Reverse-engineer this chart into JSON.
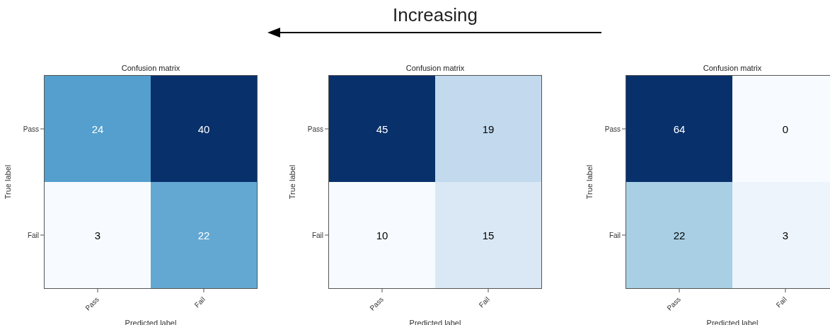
{
  "chart_data": [
    {
      "type": "other",
      "annotations": [
        "Increasing"
      ]
    },
    {
      "type": "heatmap",
      "title": "Confusion matrix",
      "xlabel": "Predicted label",
      "ylabel": "True label",
      "categories": [
        "Pass",
        "Fail"
      ],
      "y_categories": [
        "Pass",
        "Fail"
      ],
      "cells": [
        [
          24,
          40
        ],
        [
          3,
          22
        ]
      ],
      "data_labels": true,
      "colors": [
        [
          "#549fcd",
          "#08306b"
        ],
        [
          "#f7fbff",
          "#63a8d3"
        ]
      ]
    },
    {
      "type": "heatmap",
      "title": "Confusion matrix",
      "xlabel": "Predicted label",
      "ylabel": "True label",
      "categories": [
        "Pass",
        "Fail"
      ],
      "y_categories": [
        "Pass",
        "Fail"
      ],
      "cells": [
        [
          45,
          19
        ],
        [
          10,
          15
        ]
      ],
      "data_labels": true,
      "colors": [
        [
          "#08306b",
          "#c2d9ee"
        ],
        [
          "#f7fbff",
          "#dae8f5"
        ]
      ]
    },
    {
      "type": "heatmap",
      "title": "Confusion matrix",
      "xlabel": "Predicted label",
      "ylabel": "True label",
      "categories": [
        "Pass",
        "Fail"
      ],
      "y_categories": [
        "Pass",
        "Fail"
      ],
      "cells": [
        [
          64,
          0
        ],
        [
          22,
          3
        ]
      ],
      "data_labels": true,
      "colors": [
        [
          "#08306b",
          "#f7fbff"
        ],
        [
          "#a9cfe5",
          "#edf4fb"
        ]
      ]
    }
  ]
}
